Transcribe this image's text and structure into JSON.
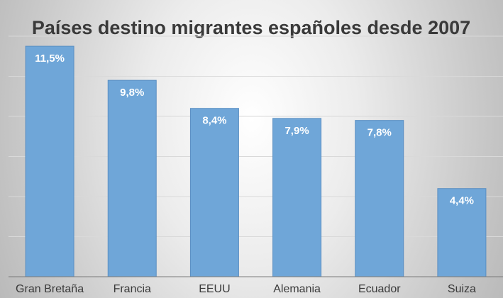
{
  "chart_data": {
    "type": "bar",
    "title": "Países destino migrantes españoles desde 2007",
    "categories": [
      "Gran Bretaña",
      "Francia",
      "EEUU",
      "Alemania",
      "Ecuador",
      "Suiza"
    ],
    "values": [
      11.5,
      9.8,
      8.4,
      7.9,
      7.8,
      4.4
    ],
    "value_labels": [
      "11,5%",
      "9,8%",
      "8,4%",
      "7,9%",
      "7,8%",
      "4,4%"
    ],
    "ylim": [
      0,
      12
    ],
    "grid": true,
    "legend": "none",
    "colors": {
      "bar": "#6fa6d8",
      "bar_edge": "#5b8fc2",
      "title": "#3a3a3a"
    }
  }
}
